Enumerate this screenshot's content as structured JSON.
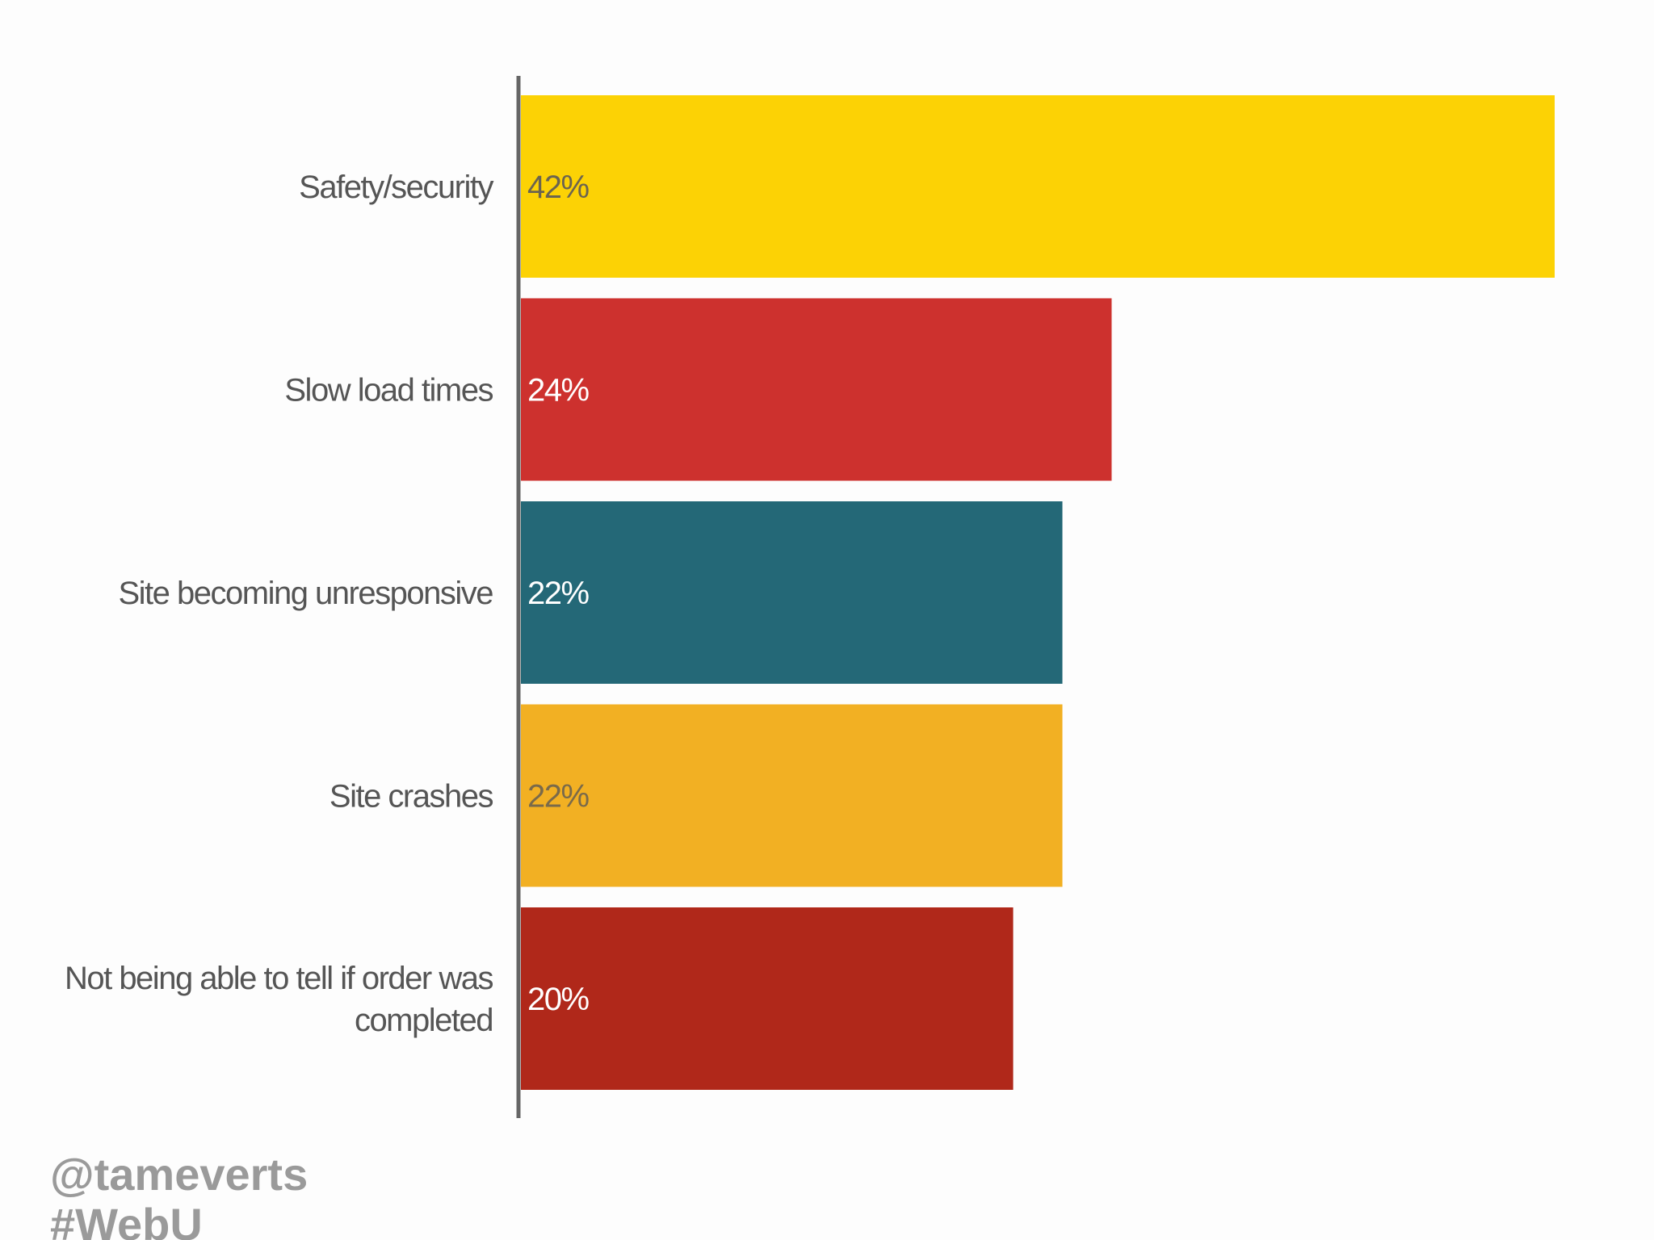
{
  "chart_data": {
    "type": "bar",
    "orientation": "horizontal",
    "categories": [
      "Safety/security",
      "Slow load times",
      "Site becoming unresponsive",
      "Site crashes",
      "Not being able to tell if order was completed"
    ],
    "values": [
      42,
      24,
      22,
      22,
      20
    ],
    "value_labels": [
      "42%",
      "24%",
      "22%",
      "22%",
      "20%"
    ],
    "bar_colors": [
      "#fcd205",
      "#cd312e",
      "#246877",
      "#f2b023",
      "#b0281a"
    ],
    "value_label_colors": [
      "#6b6450",
      "#ffffff",
      "#ffffff",
      "#7a6a4a",
      "#ffffff"
    ],
    "xlim": [
      0,
      42
    ],
    "grid": false,
    "legend": "none",
    "title": "",
    "xlabel": "",
    "ylabel": ""
  },
  "watermark": {
    "handle": "@tameverts",
    "hashtag": "#WebU"
  }
}
